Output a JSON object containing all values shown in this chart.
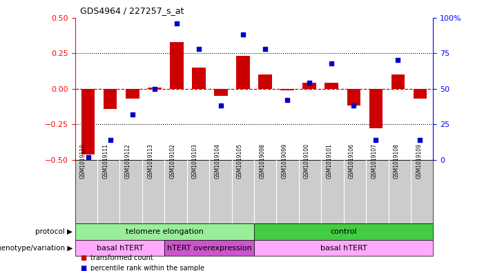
{
  "title": "GDS4964 / 227257_s_at",
  "samples": [
    "GSM1019110",
    "GSM1019111",
    "GSM1019112",
    "GSM1019113",
    "GSM1019102",
    "GSM1019103",
    "GSM1019104",
    "GSM1019105",
    "GSM1019098",
    "GSM1019099",
    "GSM1019100",
    "GSM1019101",
    "GSM1019106",
    "GSM1019107",
    "GSM1019108",
    "GSM1019109"
  ],
  "transformed_count": [
    -0.46,
    -0.14,
    -0.07,
    0.01,
    0.33,
    0.15,
    -0.05,
    0.23,
    0.1,
    -0.01,
    0.04,
    0.04,
    -0.12,
    -0.28,
    0.1,
    -0.07
  ],
  "percentile_rank": [
    2,
    14,
    32,
    50,
    96,
    78,
    38,
    88,
    78,
    42,
    54,
    68,
    38,
    14,
    70,
    14
  ],
  "protocol_groups": [
    {
      "label": "telomere elongation",
      "start": 0,
      "end": 8,
      "color": "#99ee99"
    },
    {
      "label": "control",
      "start": 8,
      "end": 16,
      "color": "#44cc44"
    }
  ],
  "genotype_groups": [
    {
      "label": "basal hTERT",
      "start": 0,
      "end": 4,
      "color": "#ffaaff"
    },
    {
      "label": "hTERT overexpression",
      "start": 4,
      "end": 8,
      "color": "#cc55cc"
    },
    {
      "label": "basal hTERT",
      "start": 8,
      "end": 16,
      "color": "#ffaaff"
    }
  ],
  "bar_color": "#cc0000",
  "dot_color": "#0000cc",
  "left_ylim": [
    -0.5,
    0.5
  ],
  "right_ylim": [
    0,
    100
  ],
  "left_yticks": [
    -0.5,
    -0.25,
    0,
    0.25,
    0.5
  ],
  "right_yticks": [
    0,
    25,
    50,
    75,
    100
  ],
  "right_yticklabels": [
    "0",
    "25",
    "50",
    "75",
    "100%"
  ],
  "hline_color": "#cc0000",
  "dotted_hline_values": [
    -0.25,
    0.25
  ],
  "legend_items": [
    {
      "label": "transformed count",
      "color": "#cc0000"
    },
    {
      "label": "percentile rank within the sample",
      "color": "#0000cc"
    }
  ],
  "protocol_label": "protocol",
  "genotype_label": "genotype/variation",
  "sample_bg_color": "#cccccc",
  "sample_divider_color": "#ffffff"
}
